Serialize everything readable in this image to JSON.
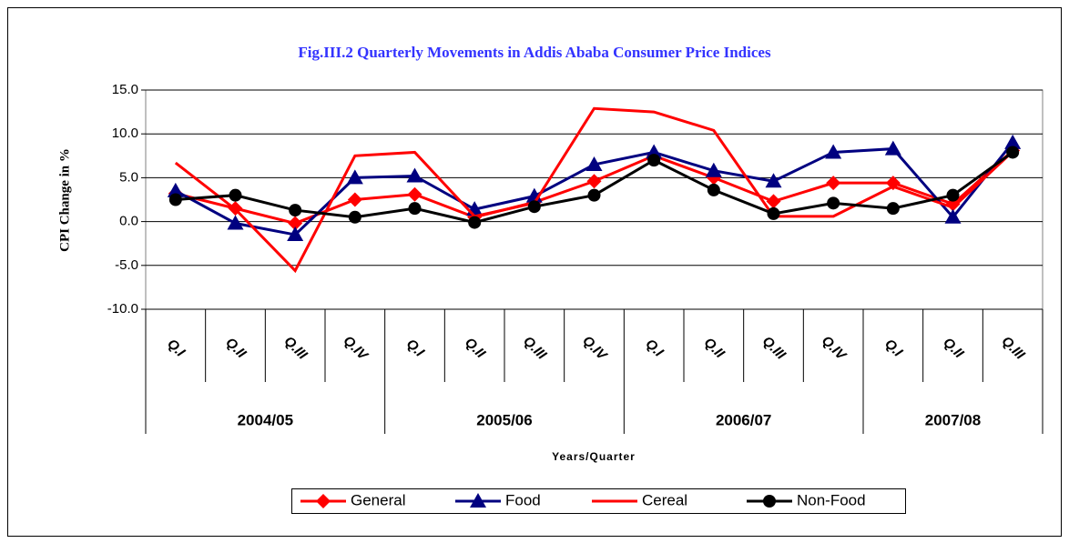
{
  "chart_data": {
    "type": "line",
    "title": "Fig.III.2 Quarterly Movements in Addis Ababa Consumer Price Indices",
    "y_label": "CPI Change in %",
    "x_label": "Years/Quarter",
    "groups": [
      {
        "name": "2004/05",
        "categories": [
          "Q.I",
          "Q.II",
          "Q.III",
          "Q.IV"
        ]
      },
      {
        "name": "2005/06",
        "categories": [
          "Q.I",
          "Q.II",
          "Q.III",
          "Q.IV"
        ]
      },
      {
        "name": "2006/07",
        "categories": [
          "Q.I",
          "Q.II",
          "Q.III",
          "Q.IV"
        ]
      },
      {
        "name": "2007/08",
        "categories": [
          "Q.I",
          "Q.II",
          "Q.III"
        ]
      }
    ],
    "series": [
      {
        "name": "General",
        "color": "#ff0000",
        "marker": "diamond",
        "values": [
          3.2,
          1.5,
          -0.2,
          2.5,
          3.1,
          0.5,
          2.2,
          4.6,
          7.5,
          5.0,
          2.3,
          4.4,
          4.4,
          2.0,
          8.1
        ]
      },
      {
        "name": "Food",
        "color": "#000080",
        "marker": "triangle",
        "values": [
          3.5,
          -0.2,
          -1.5,
          5.0,
          5.2,
          1.4,
          2.9,
          6.5,
          7.9,
          5.8,
          4.6,
          7.9,
          8.3,
          0.5,
          9.0
        ]
      },
      {
        "name": "Cereal",
        "color": "#ff0000",
        "marker": "none",
        "values": [
          6.7,
          1.4,
          -5.6,
          7.5,
          7.9,
          0.6,
          2.1,
          12.9,
          12.5,
          10.4,
          0.6,
          0.6,
          4.0,
          1.6,
          8.0
        ]
      },
      {
        "name": "Non-Food",
        "color": "#000000",
        "marker": "circle",
        "values": [
          2.5,
          3.0,
          1.3,
          0.5,
          1.5,
          -0.1,
          1.7,
          3.0,
          7.0,
          3.6,
          0.9,
          2.1,
          1.5,
          3.0,
          7.9
        ]
      }
    ],
    "ylim": [
      -10,
      15
    ],
    "yticks": [
      {
        "value": -10,
        "label": "-10.0"
      },
      {
        "value": -5,
        "label": "-5.0"
      },
      {
        "value": 0,
        "label": "0.0"
      },
      {
        "value": 5,
        "label": "5.0"
      },
      {
        "value": 10,
        "label": "10.0"
      },
      {
        "value": 15,
        "label": "15.0"
      }
    ],
    "grid": true
  }
}
